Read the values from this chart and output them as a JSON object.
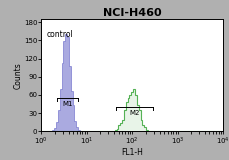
{
  "title": "NCI-H460",
  "xlabel": "FL1-H",
  "ylabel": "Counts",
  "ylabel_ticks": [
    0,
    30,
    60,
    90,
    120,
    150,
    180
  ],
  "xlim_log": [
    1.0,
    10000.0
  ],
  "ylim": [
    0,
    185
  ],
  "control_label": "control",
  "M1_label": "M1",
  "M2_label": "M2",
  "blue_color": "#4444bb",
  "green_color": "#44aa44",
  "background_color": "#b0b0b0",
  "plot_bg_color": "#ffffff",
  "title_fontsize": 8,
  "axis_fontsize": 5.5,
  "tick_fontsize": 5,
  "blue_peak": 3.5,
  "blue_sigma": 0.22,
  "blue_size": 3000,
  "green_peak": 100,
  "green_sigma": 0.3,
  "green_size": 2000,
  "blue_max_count": 160,
  "green_max_count": 70,
  "m1_x1": 2.2,
  "m1_x2": 6.5,
  "m1_y": 55,
  "m2_x1": 45,
  "m2_x2": 280,
  "m2_y": 40
}
